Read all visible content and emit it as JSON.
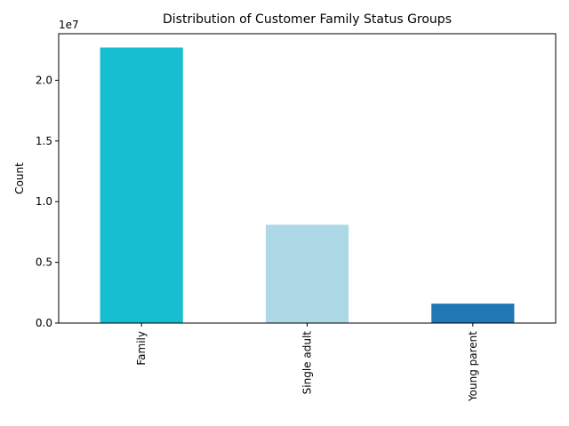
{
  "chart_data": {
    "type": "bar",
    "title": "Distribution of Customer Family Status Groups",
    "xlabel": "",
    "ylabel": "Count",
    "y_offset_label": "1e7",
    "categories": [
      "Family",
      "Single adult",
      "Young parent"
    ],
    "values": [
      22700000,
      8100000,
      1600000
    ],
    "colors": [
      "#17becf",
      "#add8e6",
      "#1f77b4"
    ],
    "ylim": [
      0,
      23835000
    ],
    "y_ticks": [
      0,
      5000000,
      10000000,
      15000000,
      20000000
    ],
    "y_tick_labels": [
      "0.0",
      "0.5",
      "1.0",
      "1.5",
      "2.0"
    ],
    "grid": false,
    "legend": "none"
  }
}
